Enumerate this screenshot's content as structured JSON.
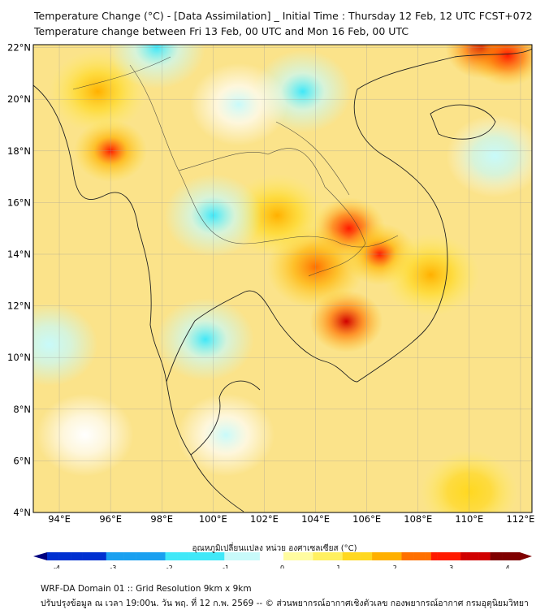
{
  "title": {
    "line1": "Temperature Change (°C) - [Data Assimilation] _ Initial Time : Thursday 12 Feb, 12 UTC FCST+072",
    "line2": "Temperature change between Fri 13 Feb, 00 UTC and Mon 16 Feb, 00 UTC"
  },
  "map": {
    "lat_labels": [
      "4°N",
      "6°N",
      "8°N",
      "10°N",
      "12°N",
      "14°N",
      "16°N",
      "18°N",
      "20°N",
      "22°N"
    ],
    "lon_labels": [
      "94°E",
      "96°E",
      "98°E",
      "100°E",
      "102°E",
      "104°E",
      "106°E",
      "108°E",
      "110°E",
      "112°E"
    ],
    "lat_values": [
      4,
      6,
      8,
      10,
      12,
      14,
      16,
      18,
      20,
      22
    ],
    "lon_values": [
      94,
      96,
      98,
      100,
      102,
      104,
      106,
      108,
      110,
      112
    ],
    "extent": {
      "lon": [
        93,
        112.5
      ],
      "lat": [
        4,
        22.2
      ]
    },
    "anomalies": [
      {
        "lon": 96,
        "lat": 18,
        "value": 2.6
      },
      {
        "lon": 95.5,
        "lat": 20.3,
        "value": 1.8
      },
      {
        "lon": 105.2,
        "lat": 11.4,
        "value": 3.3
      },
      {
        "lon": 105.3,
        "lat": 15,
        "value": 3.0
      },
      {
        "lon": 106.5,
        "lat": 14,
        "value": 2.6
      },
      {
        "lon": 104,
        "lat": 13.5,
        "value": 2.4
      },
      {
        "lon": 108.5,
        "lat": 13.2,
        "value": 2.0
      },
      {
        "lon": 110.5,
        "lat": 22,
        "value": 3.4
      },
      {
        "lon": 111.5,
        "lat": 21.7,
        "value": 3.0
      },
      {
        "lon": 102.5,
        "lat": 15.5,
        "value": 1.6
      },
      {
        "lon": 100,
        "lat": 15.5,
        "value": -1.2
      },
      {
        "lon": 103.5,
        "lat": 20.3,
        "value": -1.0
      },
      {
        "lon": 99.7,
        "lat": 10.7,
        "value": -1.0
      },
      {
        "lon": 93.6,
        "lat": 10.5,
        "value": -0.8
      },
      {
        "lon": 97.8,
        "lat": 22,
        "value": -1.0
      },
      {
        "lon": 101,
        "lat": 19.8,
        "value": -0.5
      },
      {
        "lon": 111,
        "lat": 17.8,
        "value": -0.7
      },
      {
        "lon": 100.5,
        "lat": 7,
        "value": -0.4
      },
      {
        "lon": 95,
        "lat": 7,
        "value": -0.3
      },
      {
        "lon": 110,
        "lat": 4.8,
        "value": 1.5
      }
    ]
  },
  "colorbar": {
    "label": "อุณหภูมิเปลี่ยนแปลง หน่วย องศาเซลเซียส (°C)",
    "ticks": [
      "-4",
      "-3",
      "-2",
      "-1",
      "0",
      "1",
      "2",
      "3",
      "4"
    ],
    "range": [
      -4,
      4
    ]
  },
  "footer": {
    "line1": "WRF-DA Domain 01 :: Grid Resolution 9km x 9km",
    "line2": "ปรับปรุงข้อมูล ณ เวลา 19:00น. วัน พฤ. ที่ 12 ก.พ. 2569 -- © ส่วนพยากรณ์อากาศเชิงตัวเลข กองพยากรณ์อากาศ กรมอุตุนิยมวิทยา"
  }
}
